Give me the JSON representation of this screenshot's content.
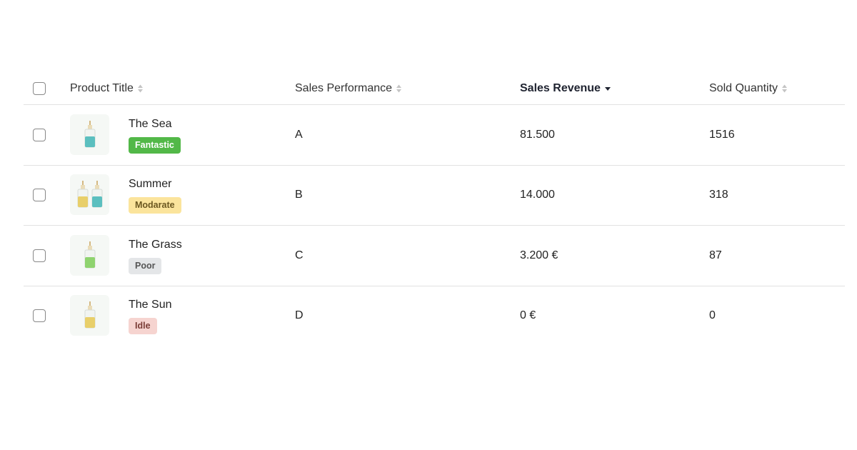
{
  "table": {
    "headers": [
      "Product Title",
      "Sales Performance",
      "Sales Revenue",
      "Sold Quantity"
    ],
    "rows": [
      {
        "title": "The Sea",
        "badge": "Fantastic",
        "performance": "A",
        "revenue": "81.500",
        "quantity": "1516"
      },
      {
        "title": "Summer",
        "badge": "Modarate",
        "performance": "B",
        "revenue": "14.000",
        "quantity": "318"
      },
      {
        "title": "The Grass",
        "badge": "Poor",
        "performance": "C",
        "revenue": "3.200 €",
        "quantity": "87"
      },
      {
        "title": "The Sun",
        "badge": "Idle",
        "performance": "D",
        "revenue": "0 €",
        "quantity": "0"
      }
    ]
  }
}
